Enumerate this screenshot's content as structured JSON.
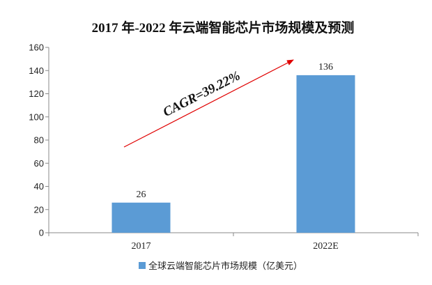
{
  "chart_data": {
    "type": "bar",
    "title": "2017 年-2022 年云端智能芯片市场规模及预测",
    "categories": [
      "2017",
      "2022E"
    ],
    "series": [
      {
        "name": "全球云端智能芯片市场规模（亿美元）",
        "values": [
          26,
          136
        ],
        "color": "#5B9BD5"
      }
    ],
    "data_labels": [
      "26",
      "136"
    ],
    "ylim": [
      0,
      160
    ],
    "yticks": [
      0,
      20,
      40,
      60,
      80,
      100,
      120,
      140,
      160
    ],
    "grid": false,
    "legend_position": "bottom",
    "annotation": {
      "text": "CAGR=39.22%",
      "arrow_color": "#E00000"
    }
  }
}
